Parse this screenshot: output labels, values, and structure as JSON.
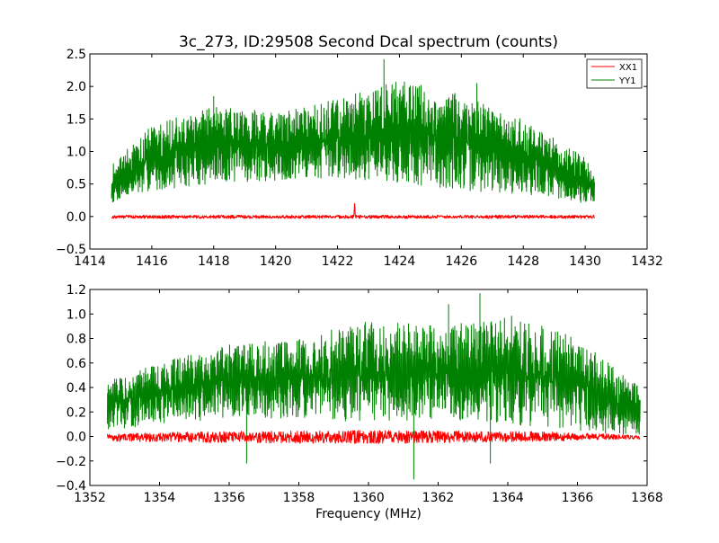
{
  "chart_data": [
    {
      "type": "line",
      "title": "3c_273, ID:29508 Second Dcal spectrum (counts)",
      "xlabel": "",
      "ylabel": "",
      "xlim": [
        1414,
        1432
      ],
      "ylim": [
        -0.5,
        2.5
      ],
      "xticks": [
        1414,
        1416,
        1418,
        1420,
        1422,
        1424,
        1426,
        1428,
        1430,
        1432
      ],
      "yticks": [
        -0.5,
        0.0,
        0.5,
        1.0,
        1.5,
        2.0,
        2.5
      ],
      "x_tick_labels": [
        "1414",
        "1416",
        "1418",
        "1420",
        "1422",
        "1424",
        "1426",
        "1428",
        "1430",
        "1432"
      ],
      "y_tick_labels": [
        "−0.5",
        "0.0",
        "0.5",
        "1.0",
        "1.5",
        "2.0",
        "2.5"
      ],
      "legend": {
        "placement": "top-right",
        "entries": [
          "XX1",
          "YY1"
        ]
      },
      "series": [
        {
          "name": "XX1",
          "color": "#ff0000",
          "x_range": [
            1414.7,
            1430.3
          ],
          "envelope_x": [
            1414.7,
            1422.5,
            1422.55,
            1422.6,
            1430.3
          ],
          "envelope_low": [
            -0.03,
            -0.03,
            -0.03,
            -0.03,
            -0.03
          ],
          "envelope_high": [
            0.02,
            0.02,
            0.2,
            0.02,
            0.02
          ]
        },
        {
          "name": "YY1",
          "color": "#008000",
          "x_range": [
            1414.7,
            1430.3
          ],
          "envelope_x": [
            1414.7,
            1416,
            1418,
            1420,
            1422,
            1424,
            1426,
            1428,
            1430,
            1430.3
          ],
          "envelope_low": [
            0.2,
            0.4,
            0.5,
            0.55,
            0.6,
            0.5,
            0.4,
            0.35,
            0.2,
            0.2
          ],
          "envelope_high": [
            0.8,
            1.4,
            1.7,
            1.6,
            1.8,
            2.1,
            1.9,
            1.5,
            0.9,
            0.7
          ],
          "peaks": [
            [
              1418,
              1.85
            ],
            [
              1423.5,
              2.42
            ],
            [
              1426.5,
              2.05
            ]
          ]
        }
      ]
    },
    {
      "type": "line",
      "title": "",
      "xlabel": "Frequency (MHz)",
      "ylabel": "",
      "xlim": [
        1352,
        1368
      ],
      "ylim": [
        -0.4,
        1.2
      ],
      "xticks": [
        1352,
        1354,
        1356,
        1358,
        1360,
        1362,
        1364,
        1366,
        1368
      ],
      "yticks": [
        -0.4,
        -0.2,
        0.0,
        0.2,
        0.4,
        0.6,
        0.8,
        1.0,
        1.2
      ],
      "x_tick_labels": [
        "1352",
        "1354",
        "1356",
        "1358",
        "1360",
        "1362",
        "1364",
        "1366",
        "1368"
      ],
      "y_tick_labels": [
        "−0.4",
        "−0.2",
        "0.0",
        "0.2",
        "0.4",
        "0.6",
        "0.8",
        "1.0",
        "1.2"
      ],
      "series": [
        {
          "name": "XX1",
          "color": "#ff0000",
          "x_range": [
            1352.5,
            1367.8
          ],
          "envelope_x": [
            1352.5,
            1355,
            1360,
            1365,
            1367.8
          ],
          "envelope_low": [
            -0.04,
            -0.05,
            -0.06,
            -0.04,
            -0.02
          ],
          "envelope_high": [
            0.02,
            0.04,
            0.05,
            0.04,
            0.01
          ]
        },
        {
          "name": "YY1",
          "color": "#008000",
          "x_range": [
            1352.5,
            1367.8
          ],
          "envelope_x": [
            1352.5,
            1354,
            1356,
            1358,
            1360,
            1362,
            1364,
            1366,
            1367.8
          ],
          "envelope_low": [
            0.05,
            0.1,
            0.15,
            0.15,
            0.1,
            0.15,
            0.1,
            0.05,
            0.0
          ],
          "envelope_high": [
            0.45,
            0.6,
            0.75,
            0.8,
            0.95,
            0.9,
            1.0,
            0.8,
            0.4
          ],
          "peaks": [
            [
              1363.2,
              1.17
            ],
            [
              1362.3,
              1.08
            ]
          ],
          "dips": [
            [
              1361.3,
              -0.35
            ],
            [
              1356.5,
              -0.22
            ],
            [
              1363.5,
              -0.22
            ]
          ]
        }
      ]
    }
  ]
}
